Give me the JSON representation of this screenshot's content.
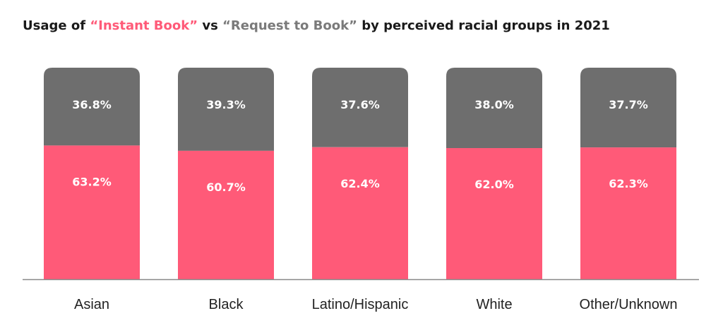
{
  "chart_data": {
    "type": "bar",
    "stacked": true,
    "title": {
      "prefix": "Usage of ",
      "series_a": "“Instant Book”",
      "middle": " vs ",
      "series_b": "“Request to Book”",
      "suffix": " by perceived racial groups in 2021"
    },
    "categories": [
      "Asian",
      "Black",
      "Latino/Hispanic",
      "White",
      "Other/Unknown"
    ],
    "series": [
      {
        "values": [
          63.2,
          60.7,
          62.4,
          62.0,
          62.3
        ],
        "labels": [
          "63.2%",
          "60.7%",
          "62.4%",
          "62.0%",
          "62.3%"
        ],
        "color": "#ff5a78"
      },
      {
        "values": [
          36.8,
          39.3,
          37.6,
          38.0,
          37.7
        ],
        "labels": [
          "36.8%",
          "39.3%",
          "37.6%",
          "38.0%",
          "37.7%"
        ],
        "color": "#6e6e6e"
      }
    ],
    "ylim": [
      0,
      100
    ],
    "grid": false,
    "baseline_color": "#888888"
  }
}
